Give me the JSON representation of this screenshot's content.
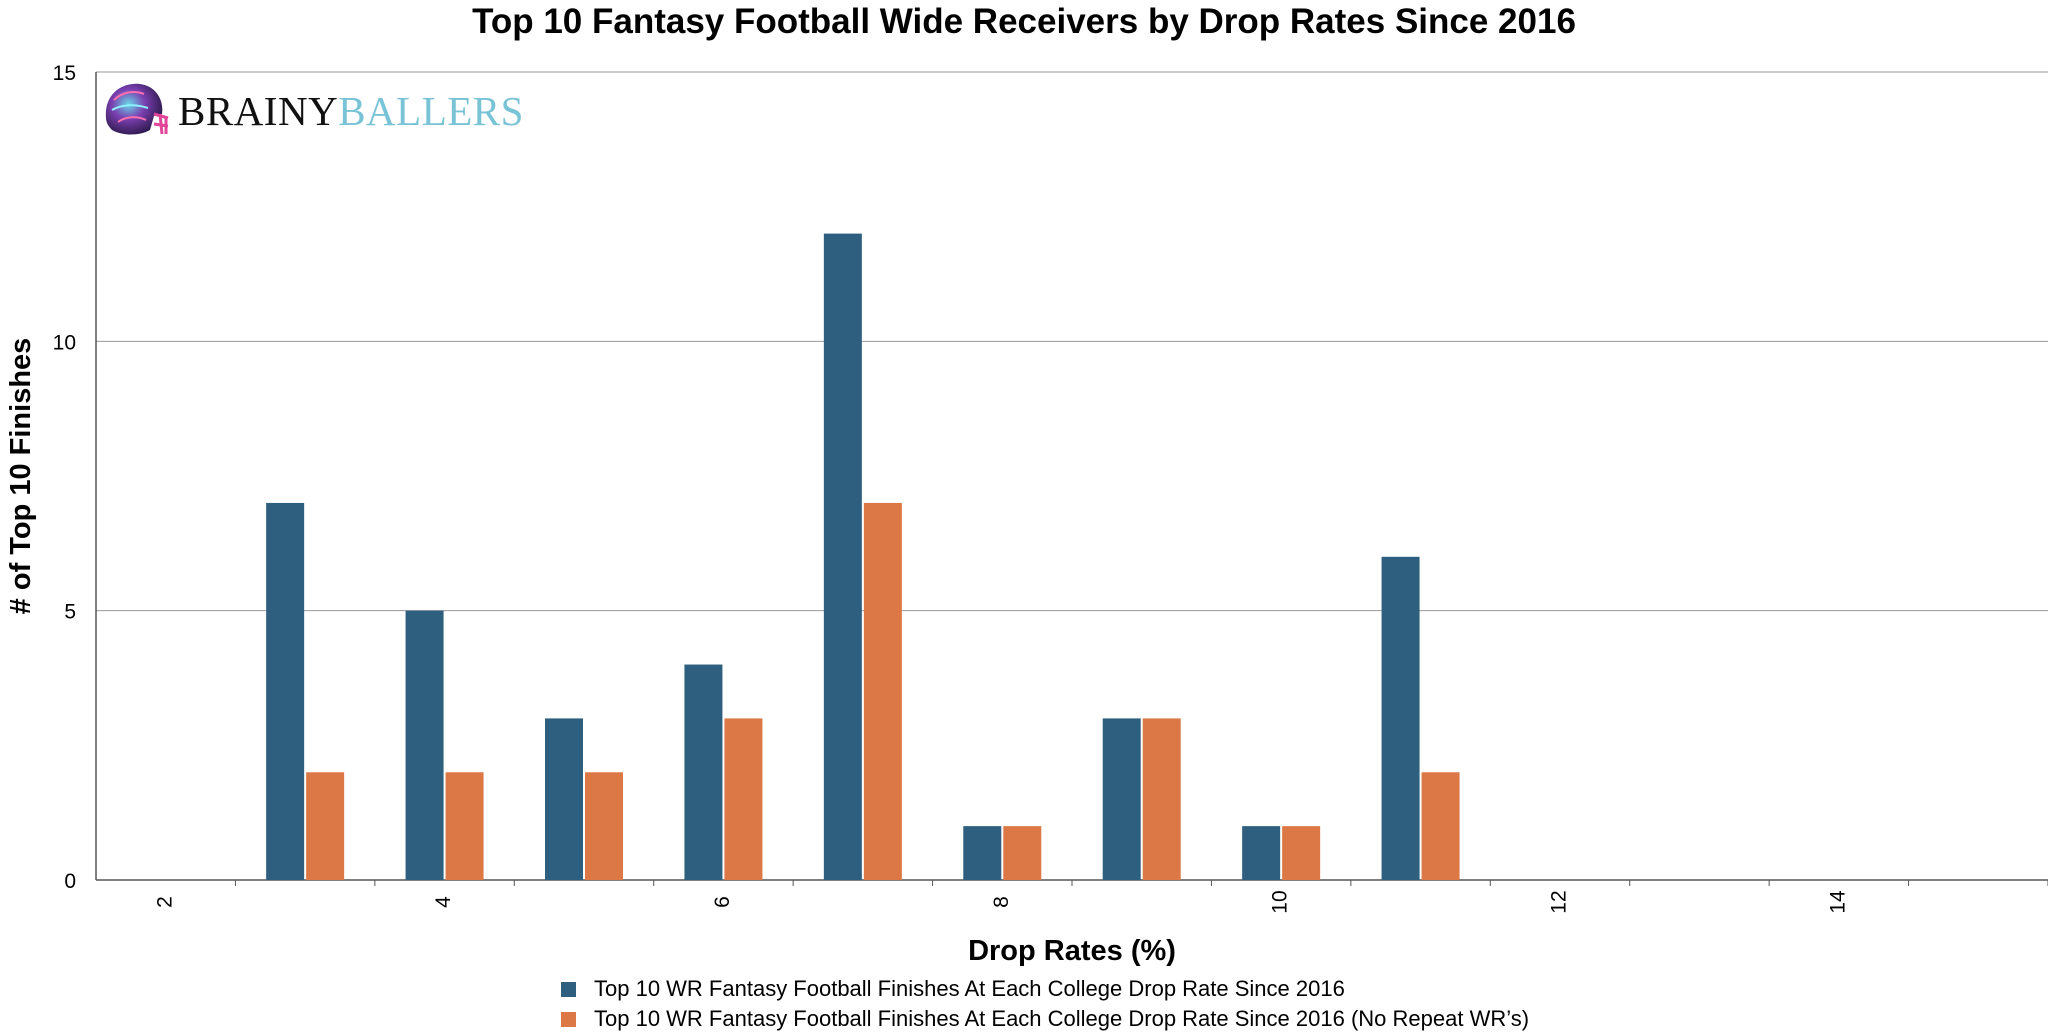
{
  "chart_data": {
    "type": "bar",
    "title": "Top 10 Fantasy Football Wide Receivers by Drop Rates Since 2016",
    "xlabel": "Drop Rates (%)",
    "ylabel": "# of Top 10 Finishes",
    "ylim": [
      0,
      15
    ],
    "yticks": [
      "0",
      "5",
      "10",
      "15"
    ],
    "xlim": [
      1.5,
      15.5
    ],
    "xticks": [
      "2",
      "4",
      "6",
      "8",
      "10",
      "12",
      "14"
    ],
    "grid": true,
    "legend_position": "bottom",
    "x": [
      3,
      4,
      5,
      6,
      7,
      8,
      9,
      10,
      11
    ],
    "series": [
      {
        "name": "Top 10 WR Fantasy Football Finishes At Each College Drop Rate Since 2016",
        "color": "#2e5f7f",
        "values": [
          7,
          5,
          3,
          4,
          12,
          1,
          3,
          1,
          6
        ]
      },
      {
        "name": "Top 10 WR Fantasy Football Finishes At Each College Drop Rate Since 2016 (No Repeat WR’s)",
        "color": "#dc7846",
        "values": [
          2,
          2,
          2,
          3,
          7,
          1,
          3,
          1,
          2
        ]
      }
    ]
  },
  "brand": {
    "part1": "BRAINY",
    "part2": "BALLERS",
    "icon": "football-helmet-icon"
  }
}
